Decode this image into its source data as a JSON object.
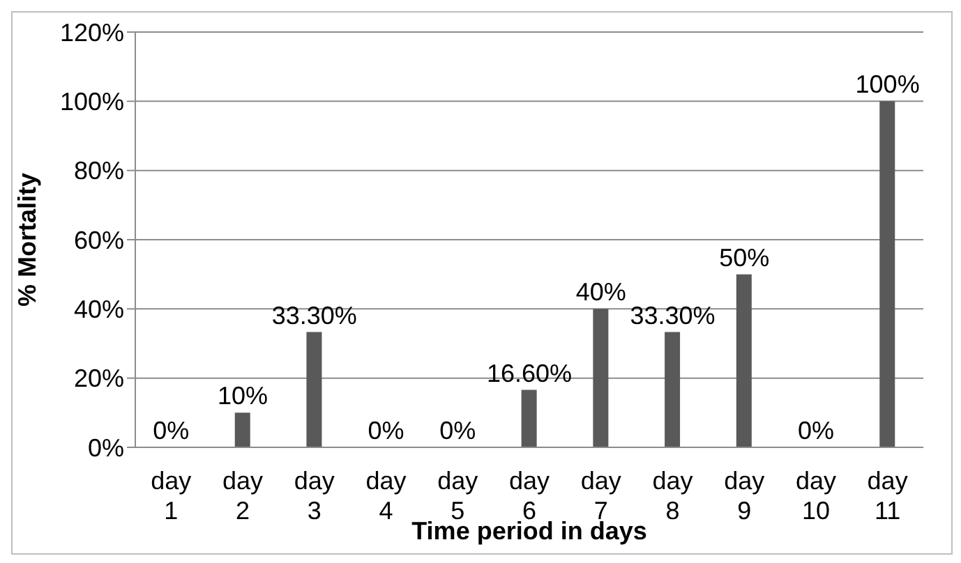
{
  "chart_data": {
    "type": "bar",
    "xlabel": "Time period in days",
    "ylabel": "% Mortality",
    "categories": [
      "day 1",
      "day 2",
      "day 3",
      "day 4",
      "day 5",
      "day 6",
      "day 7",
      "day 8",
      "day 9",
      "day 10",
      "day 11"
    ],
    "values": [
      0,
      10,
      33.3,
      0,
      0,
      16.6,
      40,
      33.3,
      50,
      0,
      100
    ],
    "value_labels": [
      "0%",
      "10%",
      "33.30%",
      "0%",
      "0%",
      "16.60%",
      "40%",
      "33.30%",
      "50%",
      "0%",
      "100%"
    ],
    "color": "#595959",
    "ylim": [
      0,
      120
    ],
    "yticks": [
      {
        "value": 0,
        "label": "0%"
      },
      {
        "value": 20,
        "label": "20%"
      },
      {
        "value": 40,
        "label": "40%"
      },
      {
        "value": 60,
        "label": "60%"
      },
      {
        "value": 80,
        "label": "80%"
      },
      {
        "value": 100,
        "label": "100%"
      },
      {
        "value": 120,
        "label": "120%"
      }
    ],
    "grid": "y",
    "legend": false
  }
}
